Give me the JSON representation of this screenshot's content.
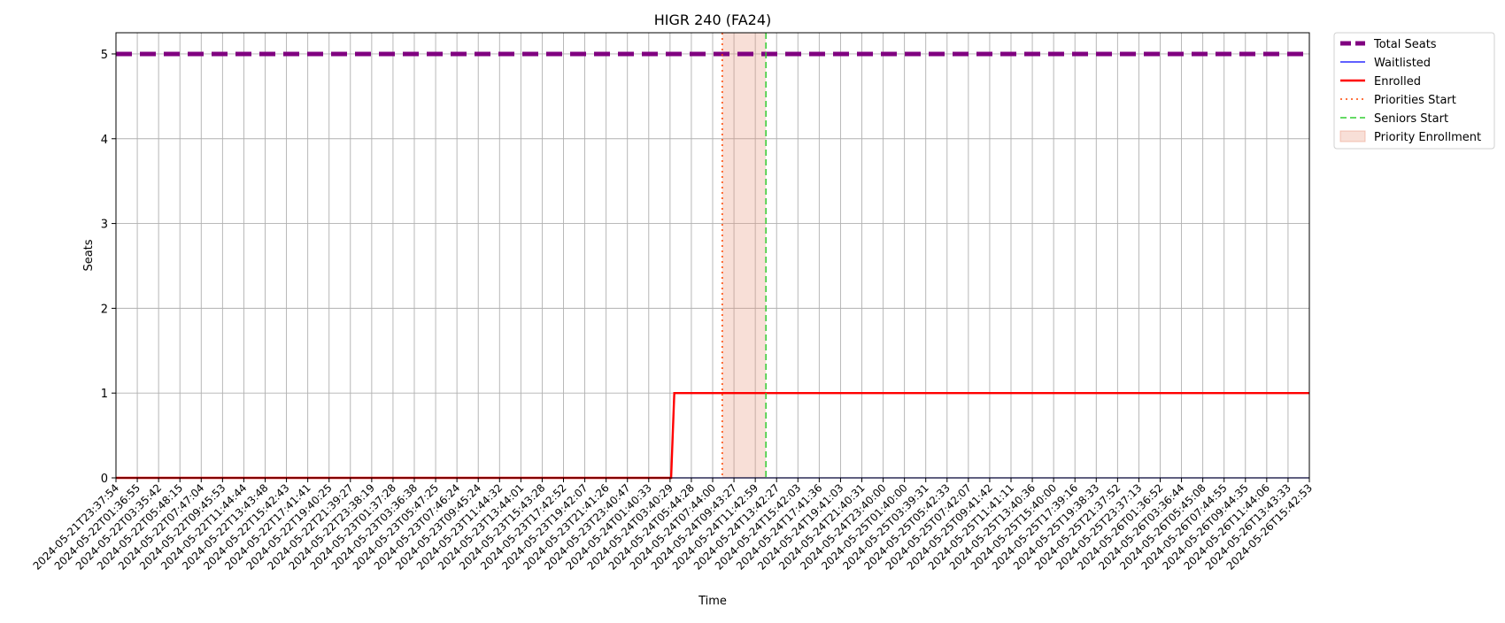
{
  "chart_data": {
    "type": "line",
    "title": "HIGR 240 (FA24)",
    "xlabel": "Time",
    "ylabel": "Seats",
    "ylim": [
      0,
      5.25
    ],
    "y_ticks": [
      0,
      1,
      2,
      3,
      4,
      5
    ],
    "grid": true,
    "legend_position": "outside-top-right",
    "x_ticks": [
      "2024-05-21T23:37:54",
      "2024-05-22T01:36:55",
      "2024-05-22T03:35:42",
      "2024-05-22T05:48:15",
      "2024-05-22T07:47:04",
      "2024-05-22T09:45:53",
      "2024-05-22T11:44:44",
      "2024-05-22T13:43:48",
      "2024-05-22T15:42:43",
      "2024-05-22T17:41:41",
      "2024-05-22T19:40:25",
      "2024-05-22T21:39:27",
      "2024-05-22T23:38:19",
      "2024-05-23T01:37:28",
      "2024-05-23T03:36:38",
      "2024-05-23T05:47:25",
      "2024-05-23T07:46:24",
      "2024-05-23T09:45:24",
      "2024-05-23T11:44:32",
      "2024-05-23T13:44:01",
      "2024-05-23T15:43:28",
      "2024-05-23T17:42:52",
      "2024-05-23T19:42:07",
      "2024-05-23T21:41:26",
      "2024-05-23T23:40:47",
      "2024-05-24T01:40:33",
      "2024-05-24T03:40:29",
      "2024-05-24T05:44:28",
      "2024-05-24T07:44:00",
      "2024-05-24T09:43:27",
      "2024-05-24T11:42:59",
      "2024-05-24T13:42:27",
      "2024-05-24T15:42:03",
      "2024-05-24T17:41:36",
      "2024-05-24T19:41:03",
      "2024-05-24T21:40:31",
      "2024-05-24T23:40:00",
      "2024-05-25T01:40:00",
      "2024-05-25T03:39:31",
      "2024-05-25T05:42:33",
      "2024-05-25T07:42:07",
      "2024-05-25T09:41:42",
      "2024-05-25T11:41:11",
      "2024-05-25T13:40:36",
      "2024-05-25T15:40:00",
      "2024-05-25T17:39:16",
      "2024-05-25T19:38:33",
      "2024-05-25T21:37:52",
      "2024-05-25T23:37:13",
      "2024-05-26T01:36:52",
      "2024-05-26T03:36:44",
      "2024-05-26T05:45:08",
      "2024-05-26T07:44:55",
      "2024-05-26T09:44:35",
      "2024-05-26T11:44:06",
      "2024-05-26T13:43:33",
      "2024-05-26T15:42:53"
    ],
    "series": [
      {
        "name": "Total Seats",
        "style": "dashed-thick",
        "color": "#800080",
        "constant": 5
      },
      {
        "name": "Waitlisted",
        "style": "solid-thin",
        "color": "#0000ff",
        "constant": 0
      },
      {
        "name": "Enrolled",
        "style": "solid",
        "color": "#ff0000",
        "points": [
          [
            0,
            0
          ],
          [
            26.05,
            0
          ],
          [
            26.2,
            1
          ],
          [
            56,
            1
          ]
        ]
      }
    ],
    "markers": [
      {
        "name": "Priorities Start",
        "style": "dotted",
        "color": "#ff4500",
        "x": 28.45
      },
      {
        "name": "Seniors Start",
        "style": "dashed",
        "color": "#32cd32",
        "x": 30.5
      }
    ],
    "regions": [
      {
        "name": "Priority Enrollment",
        "color": "#e9967a",
        "opacity": 0.3,
        "x_start": 28.45,
        "x_end": 30.5
      }
    ],
    "legend": [
      "Total Seats",
      "Waitlisted",
      "Enrolled",
      "Priorities Start",
      "Seniors Start",
      "Priority Enrollment"
    ]
  }
}
